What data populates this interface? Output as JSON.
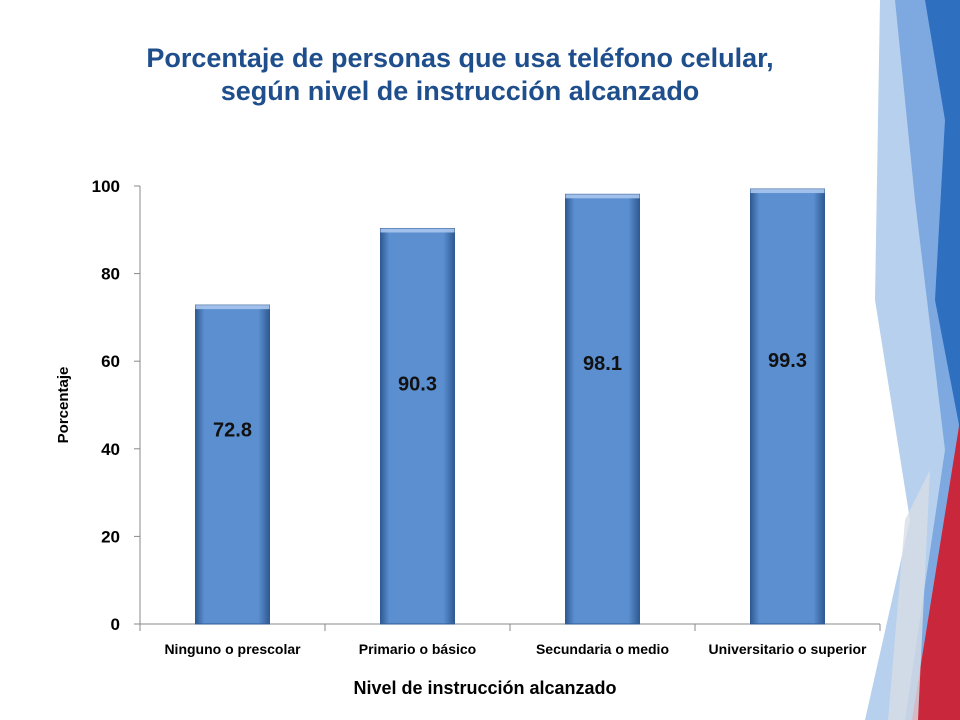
{
  "title": {
    "line1": "Porcentaje de personas que usa teléfono celular,",
    "line2": "según nivel de instrucción alcanzado"
  },
  "colors": {
    "title": "#1f4e8c",
    "bar": "#5b8fd0",
    "bar_dark": "#2f5a93",
    "axis": "#888888",
    "deco_light": "#a9c8ea",
    "deco_blue": "#2e6fc0",
    "deco_red": "#c9283c"
  },
  "chart_data": {
    "type": "bar",
    "categories": [
      "Ninguno o prescolar",
      "Primario o básico",
      "Secundaria o medio",
      "Universitario o superior"
    ],
    "values": [
      72.8,
      90.3,
      98.1,
      99.3
    ],
    "data_labels": [
      "72.8",
      "90.3",
      "98.1",
      "99.3"
    ],
    "xlabel": "Nivel de instrucción alcanzado",
    "ylabel": "Porcentaje",
    "ylim": [
      0,
      100
    ],
    "yticks": [
      0,
      20,
      40,
      60,
      80,
      100
    ],
    "ytick_labels": [
      "0",
      "20",
      "40",
      "60",
      "80",
      "100"
    ],
    "grid": false,
    "legend": "none"
  }
}
